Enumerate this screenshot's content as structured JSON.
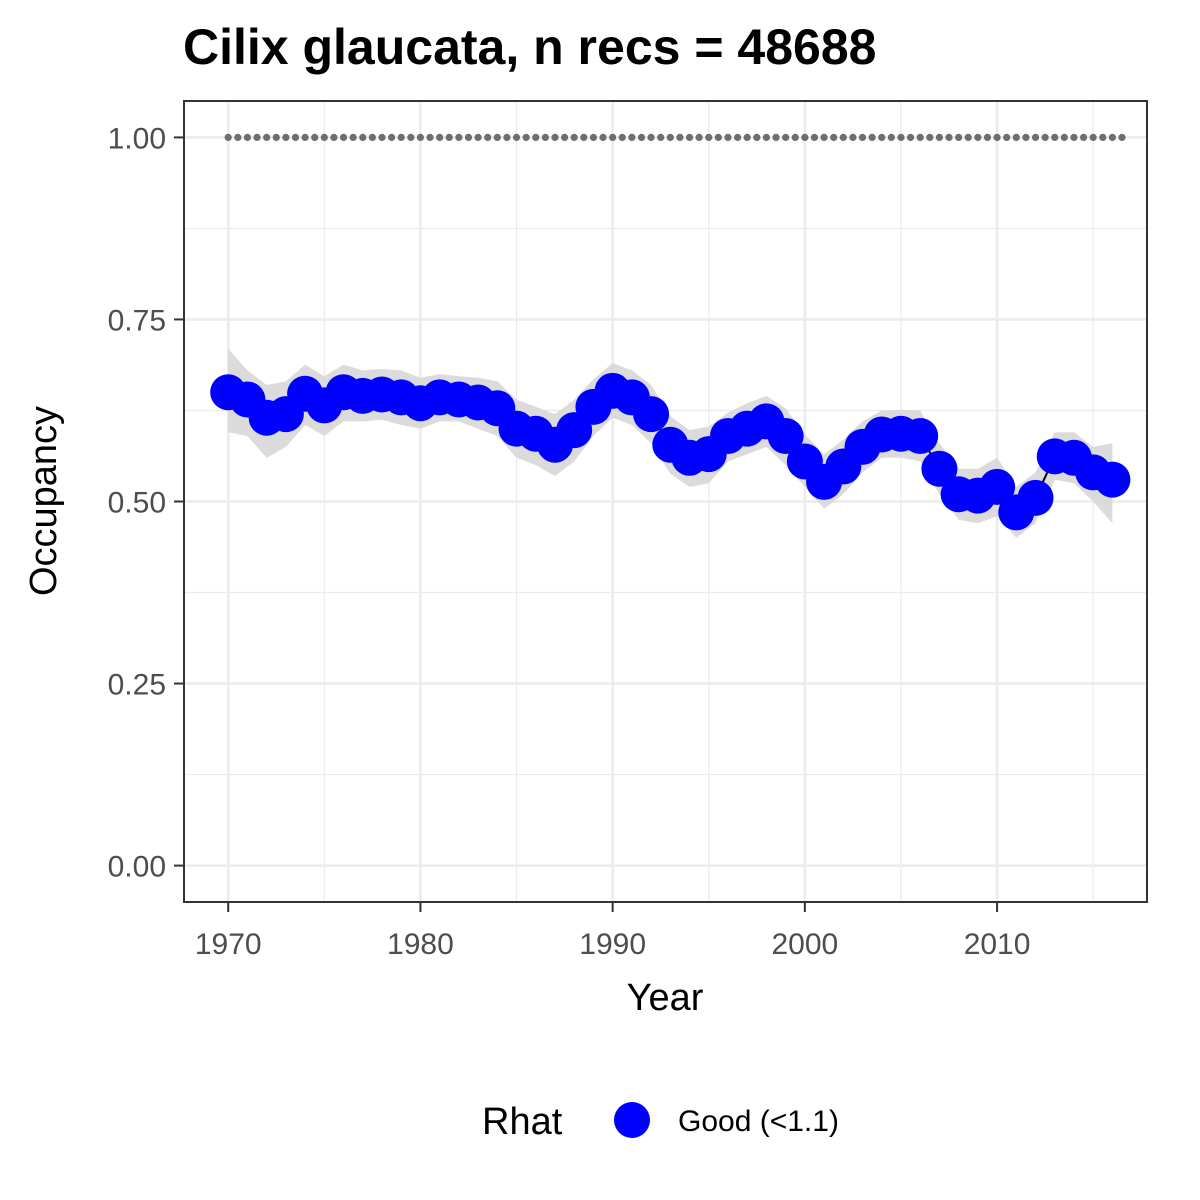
{
  "chart_data": {
    "type": "line",
    "title": "Cilix glaucata, n recs = 48688",
    "xlabel": "Year",
    "ylabel": "Occupancy",
    "xlim": [
      1967.7,
      2017.8
    ],
    "ylim": [
      -0.05,
      1.05
    ],
    "x_ticks": [
      1970,
      1980,
      1990,
      2000,
      2010
    ],
    "x_tick_labels": [
      "1970",
      "1980",
      "1990",
      "2000",
      "2010"
    ],
    "y_ticks": [
      0,
      0.25,
      0.5,
      0.75,
      1.0
    ],
    "y_tick_labels": [
      "0.00",
      "0.25",
      "0.50",
      "0.75",
      "1.00"
    ],
    "grid": true,
    "colors": {
      "point": "#0000ff",
      "ribbon": "#d9d9d9",
      "reference": "#6e6e6e",
      "grid": "#ebebeb",
      "panel_border": "#333333"
    },
    "series": [
      {
        "name": "Good (<1.1)",
        "x": [
          1970,
          1971,
          1972,
          1973,
          1974,
          1975,
          1976,
          1977,
          1978,
          1979,
          1980,
          1981,
          1982,
          1983,
          1984,
          1985,
          1986,
          1987,
          1988,
          1989,
          1990,
          1991,
          1992,
          1993,
          1994,
          1995,
          1996,
          1997,
          1998,
          1999,
          2000,
          2001,
          2002,
          2003,
          2004,
          2005,
          2006,
          2007,
          2008,
          2009,
          2010,
          2011,
          2012,
          2013,
          2014,
          2015,
          2016
        ],
        "y": [
          0.65,
          0.64,
          0.615,
          0.62,
          0.648,
          0.632,
          0.65,
          0.645,
          0.647,
          0.643,
          0.635,
          0.643,
          0.64,
          0.636,
          0.628,
          0.6,
          0.593,
          0.578,
          0.598,
          0.63,
          0.652,
          0.643,
          0.62,
          0.578,
          0.56,
          0.565,
          0.59,
          0.6,
          0.61,
          0.59,
          0.555,
          0.527,
          0.548,
          0.575,
          0.592,
          0.593,
          0.59,
          0.545,
          0.51,
          0.508,
          0.52,
          0.485,
          0.505,
          0.562,
          0.56,
          0.54,
          0.53
        ],
        "lower": [
          0.595,
          0.59,
          0.56,
          0.575,
          0.605,
          0.59,
          0.61,
          0.61,
          0.612,
          0.605,
          0.6,
          0.61,
          0.61,
          0.6,
          0.59,
          0.56,
          0.55,
          0.535,
          0.555,
          0.59,
          0.615,
          0.605,
          0.58,
          0.538,
          0.52,
          0.525,
          0.555,
          0.565,
          0.575,
          0.55,
          0.52,
          0.49,
          0.51,
          0.54,
          0.56,
          0.56,
          0.555,
          0.51,
          0.475,
          0.47,
          0.48,
          0.45,
          0.47,
          0.53,
          0.525,
          0.5,
          0.47
        ],
        "upper": [
          0.71,
          0.68,
          0.66,
          0.665,
          0.688,
          0.672,
          0.688,
          0.68,
          0.682,
          0.68,
          0.67,
          0.675,
          0.672,
          0.67,
          0.665,
          0.64,
          0.63,
          0.62,
          0.64,
          0.668,
          0.69,
          0.68,
          0.66,
          0.617,
          0.598,
          0.603,
          0.622,
          0.635,
          0.645,
          0.628,
          0.592,
          0.565,
          0.585,
          0.61,
          0.625,
          0.626,
          0.625,
          0.58,
          0.545,
          0.545,
          0.56,
          0.52,
          0.54,
          0.595,
          0.595,
          0.575,
          0.58
        ]
      }
    ],
    "reference_line": {
      "y": 1.0,
      "style": "dotted"
    },
    "legend": {
      "title": "Rhat",
      "placement": "bottom",
      "entries": [
        {
          "label": "Good (<1.1)",
          "color": "#0000ff"
        }
      ]
    }
  }
}
